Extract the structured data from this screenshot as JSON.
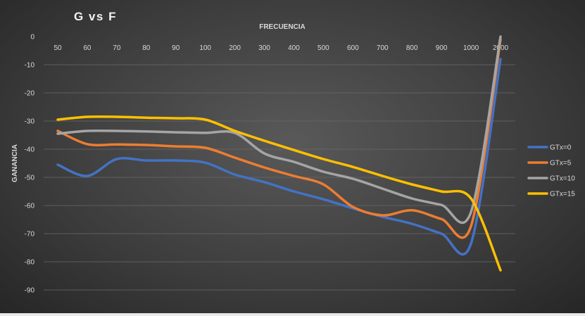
{
  "chart_data": {
    "type": "line",
    "title": "G vs F",
    "xlabel": "FRECUENCIA",
    "ylabel": "GANANCIA",
    "categories": [
      "50",
      "60",
      "70",
      "80",
      "90",
      "100",
      "200",
      "300",
      "400",
      "500",
      "600",
      "700",
      "800",
      "900",
      "1000",
      "2000"
    ],
    "ylim": [
      -90,
      0
    ],
    "yticks": [
      0,
      -10,
      -20,
      -30,
      -40,
      -50,
      -60,
      -70,
      -80,
      -90
    ],
    "grid": true,
    "legend_position": "right",
    "series": [
      {
        "name": "GTx=0",
        "color": "#4472c4",
        "values": [
          -45.5,
          -49.5,
          -43.5,
          -44,
          -44,
          -44.8,
          -49,
          -51.7,
          -55,
          -57.8,
          -61,
          -64,
          -66.5,
          -70,
          -73.5,
          -8
        ]
      },
      {
        "name": "GTx=5",
        "color": "#ed7d31",
        "values": [
          -33.5,
          -38.2,
          -38.3,
          -38.5,
          -39,
          -39.5,
          -43,
          -46.5,
          -49.5,
          -52.5,
          -60.5,
          -63.5,
          -61.7,
          -64.8,
          -67.3,
          -1
        ]
      },
      {
        "name": "GTx=10",
        "color": "#a5a5a5",
        "values": [
          -34.5,
          -33.5,
          -33.5,
          -33.7,
          -34,
          -34.2,
          -34.2,
          -41.5,
          -44.5,
          -48,
          -50.5,
          -54,
          -57.5,
          -59.8,
          -62.3,
          0
        ]
      },
      {
        "name": "GTx=15",
        "color": "#ffc000",
        "values": [
          -29.5,
          -28.5,
          -28.5,
          -28.8,
          -29,
          -29.5,
          -33.5,
          -37,
          -40.3,
          -43.5,
          -46.3,
          -49.5,
          -52.5,
          -55,
          -57.5,
          -83
        ]
      }
    ]
  }
}
